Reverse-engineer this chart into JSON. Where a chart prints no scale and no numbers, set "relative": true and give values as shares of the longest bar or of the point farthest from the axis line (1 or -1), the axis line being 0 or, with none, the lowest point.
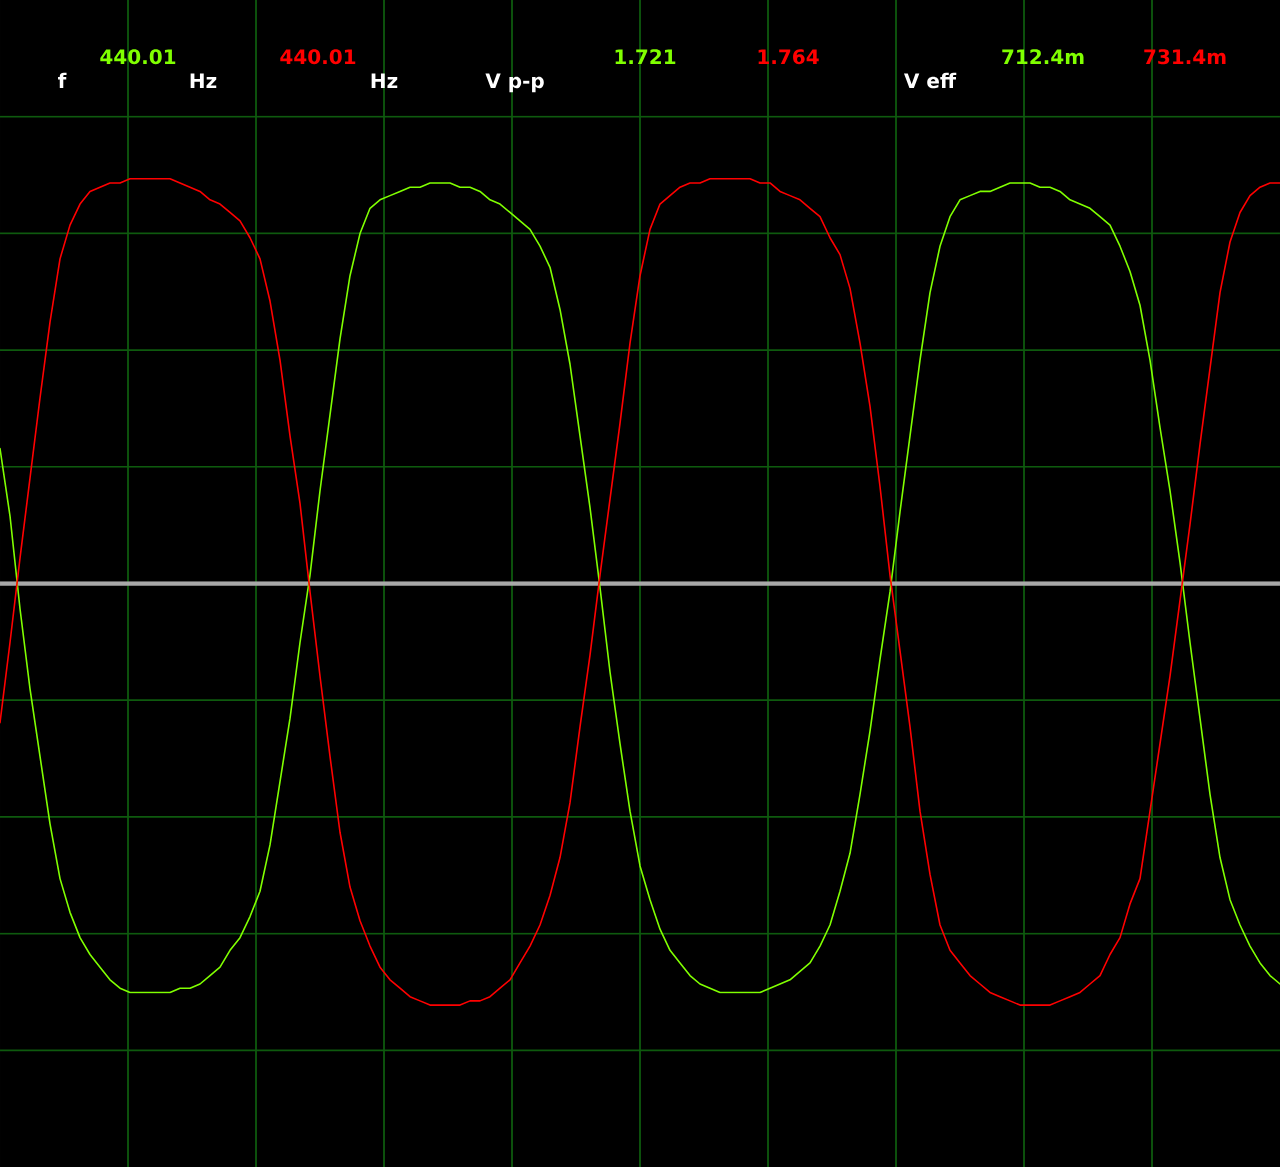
{
  "chart_data": {
    "type": "line",
    "relative": true,
    "grid": true,
    "annotations": [
      "f",
      "440.01",
      "Hz",
      "440.01",
      "Hz",
      "V p-p",
      "1.721",
      "1.764",
      "V eff",
      "712.4m",
      "731.4m"
    ],
    "categories": [
      null,
      null,
      null,
      null,
      null,
      null,
      null,
      null,
      null,
      null,
      null,
      null,
      null,
      null,
      null,
      null,
      null,
      null,
      null,
      null,
      null,
      null,
      null,
      null,
      null,
      null,
      null,
      null,
      null,
      null,
      null,
      null,
      null,
      null,
      null,
      null,
      null,
      null,
      null,
      null,
      null,
      null,
      null,
      null,
      null,
      null,
      null,
      null,
      null,
      null,
      null,
      null,
      null,
      null,
      null,
      null,
      null,
      null,
      null,
      null,
      null,
      null,
      null,
      null,
      null,
      null,
      null,
      null,
      null,
      null,
      null,
      null,
      null,
      null,
      null,
      null,
      null,
      null,
      null,
      null,
      null,
      null,
      null,
      null,
      null,
      null,
      null,
      null,
      null,
      null,
      null,
      null,
      null,
      null,
      null,
      null,
      null,
      null,
      null,
      null,
      null,
      null,
      null,
      null,
      null,
      null,
      null,
      null,
      null,
      null,
      null,
      null,
      null,
      null,
      null,
      null,
      null,
      null,
      null,
      null,
      null,
      null,
      null,
      null,
      null,
      null,
      null,
      null,
      null
    ],
    "series": [
      {
        "color": "#80ff00",
        "values": [
          0.32,
          0.16,
          -0.06,
          -0.25,
          -0.41,
          -0.57,
          -0.7,
          -0.78,
          -0.84,
          -0.88,
          -0.91,
          -0.94,
          -0.96,
          -0.97,
          -0.97,
          -0.97,
          -0.97,
          -0.97,
          -0.96,
          -0.96,
          -0.95,
          -0.93,
          -0.91,
          -0.87,
          -0.84,
          -0.79,
          -0.73,
          -0.62,
          -0.47,
          -0.32,
          -0.14,
          0.02,
          0.22,
          0.4,
          0.58,
          0.73,
          0.83,
          0.89,
          0.91,
          0.92,
          0.93,
          0.94,
          0.94,
          0.95,
          0.95,
          0.95,
          0.94,
          0.94,
          0.93,
          0.91,
          0.9,
          0.88,
          0.86,
          0.84,
          0.8,
          0.75,
          0.65,
          0.52,
          0.35,
          0.18,
          -0.01,
          -0.21,
          -0.38,
          -0.54,
          -0.67,
          -0.75,
          -0.82,
          -0.87,
          -0.9,
          -0.93,
          -0.95,
          -0.96,
          -0.97,
          -0.97,
          -0.97,
          -0.97,
          -0.97,
          -0.96,
          -0.95,
          -0.94,
          -0.92,
          -0.9,
          -0.86,
          -0.81,
          -0.73,
          -0.64,
          -0.5,
          -0.35,
          -0.18,
          -0.02,
          0.17,
          0.35,
          0.53,
          0.69,
          0.8,
          0.87,
          0.91,
          0.92,
          0.93,
          0.93,
          0.94,
          0.95,
          0.95,
          0.95,
          0.94,
          0.94,
          0.93,
          0.91,
          0.9,
          0.89,
          0.87,
          0.85,
          0.8,
          0.74,
          0.66,
          0.53,
          0.37,
          0.22,
          0.05,
          -0.14,
          -0.32,
          -0.5,
          -0.65,
          -0.75,
          -0.81,
          -0.86,
          -0.9,
          -0.93,
          -0.95
        ]
      },
      {
        "color": "#ff0000",
        "values": [
          -0.33,
          -0.14,
          0.06,
          0.25,
          0.44,
          0.62,
          0.77,
          0.85,
          0.9,
          0.93,
          0.94,
          0.95,
          0.95,
          0.96,
          0.96,
          0.96,
          0.96,
          0.96,
          0.95,
          0.94,
          0.93,
          0.91,
          0.9,
          0.88,
          0.86,
          0.82,
          0.77,
          0.67,
          0.53,
          0.35,
          0.19,
          -0.02,
          -0.22,
          -0.41,
          -0.59,
          -0.72,
          -0.8,
          -0.86,
          -0.91,
          -0.94,
          -0.96,
          -0.98,
          -0.99,
          -1.0,
          -1.0,
          -1.0,
          -1.0,
          -0.99,
          -0.99,
          -0.98,
          -0.96,
          -0.94,
          -0.9,
          -0.86,
          -0.81,
          -0.74,
          -0.65,
          -0.52,
          -0.34,
          -0.17,
          0.02,
          0.2,
          0.38,
          0.57,
          0.73,
          0.84,
          0.9,
          0.92,
          0.94,
          0.95,
          0.95,
          0.96,
          0.96,
          0.96,
          0.96,
          0.96,
          0.95,
          0.95,
          0.93,
          0.92,
          0.91,
          0.89,
          0.87,
          0.82,
          0.78,
          0.7,
          0.57,
          0.42,
          0.23,
          0.02,
          -0.16,
          -0.34,
          -0.54,
          -0.69,
          -0.81,
          -0.87,
          -0.9,
          -0.93,
          -0.95,
          -0.97,
          -0.98,
          -0.99,
          -1.0,
          -1.0,
          -1.0,
          -1.0,
          -0.99,
          -0.98,
          -0.97,
          -0.95,
          -0.93,
          -0.88,
          -0.84,
          -0.76,
          -0.7,
          -0.54,
          -0.38,
          -0.22,
          -0.04,
          0.14,
          0.33,
          0.51,
          0.69,
          0.81,
          0.88,
          0.92,
          0.94,
          0.95,
          0.95
        ]
      }
    ]
  }
}
